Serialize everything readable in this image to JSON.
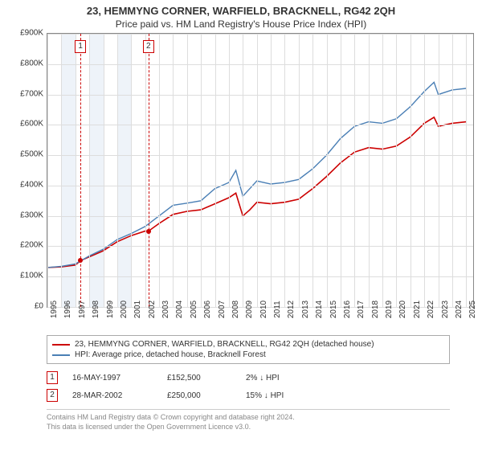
{
  "title": "23, HEMMYNG CORNER, WARFIELD, BRACKNELL, RG42 2QH",
  "subtitle": "Price paid vs. HM Land Registry's House Price Index (HPI)",
  "chart": {
    "type": "line",
    "background_color": "#ffffff",
    "grid_color": "#dddddd",
    "border_color": "#888888",
    "xlim": [
      1995,
      2025.5
    ],
    "ylim": [
      0,
      900000
    ],
    "y_ticks": [
      0,
      100000,
      200000,
      300000,
      400000,
      500000,
      600000,
      700000,
      800000,
      900000
    ],
    "y_tick_labels": [
      "£0",
      "£100K",
      "£200K",
      "£300K",
      "£400K",
      "£500K",
      "£600K",
      "£700K",
      "£800K",
      "£900K"
    ],
    "x_ticks": [
      1995,
      1996,
      1997,
      1998,
      1999,
      2000,
      2001,
      2002,
      2003,
      2004,
      2005,
      2006,
      2007,
      2008,
      2009,
      2010,
      2011,
      2012,
      2013,
      2014,
      2015,
      2016,
      2017,
      2018,
      2019,
      2020,
      2021,
      2022,
      2023,
      2024,
      2025
    ],
    "shaded_bands": [
      {
        "from": 1996,
        "to": 1997,
        "color": "#eef3f9"
      },
      {
        "from": 1998,
        "to": 1999,
        "color": "#eef3f9"
      },
      {
        "from": 2000,
        "to": 2001,
        "color": "#eef3f9"
      }
    ],
    "event_lines": [
      {
        "x": 1997.37,
        "label": "1",
        "color": "#cc0000"
      },
      {
        "x": 2002.24,
        "label": "2",
        "color": "#cc0000"
      }
    ],
    "series": [
      {
        "name": "price_paid",
        "label": "23, HEMMYNG CORNER, WARFIELD, BRACKNELL, RG42 2QH (detached house)",
        "color": "#cc0000",
        "line_width": 1.6,
        "points": [
          [
            1995,
            130000
          ],
          [
            1996,
            132000
          ],
          [
            1997,
            138000
          ],
          [
            1997.37,
            152500
          ],
          [
            1998,
            165000
          ],
          [
            1999,
            185000
          ],
          [
            2000,
            215000
          ],
          [
            2001,
            235000
          ],
          [
            2002,
            250000
          ],
          [
            2002.24,
            250000
          ],
          [
            2003,
            275000
          ],
          [
            2004,
            305000
          ],
          [
            2005,
            315000
          ],
          [
            2006,
            320000
          ],
          [
            2007,
            340000
          ],
          [
            2008,
            360000
          ],
          [
            2008.5,
            375000
          ],
          [
            2009,
            300000
          ],
          [
            2009.5,
            320000
          ],
          [
            2010,
            345000
          ],
          [
            2011,
            340000
          ],
          [
            2012,
            345000
          ],
          [
            2013,
            355000
          ],
          [
            2014,
            390000
          ],
          [
            2015,
            430000
          ],
          [
            2016,
            475000
          ],
          [
            2017,
            510000
          ],
          [
            2018,
            525000
          ],
          [
            2019,
            520000
          ],
          [
            2020,
            530000
          ],
          [
            2021,
            560000
          ],
          [
            2022,
            605000
          ],
          [
            2022.7,
            625000
          ],
          [
            2023,
            595000
          ],
          [
            2024,
            605000
          ],
          [
            2025,
            610000
          ]
        ],
        "sale_markers": [
          {
            "x": 1997.37,
            "y": 152500,
            "color": "#cc0000"
          },
          {
            "x": 2002.24,
            "y": 250000,
            "color": "#cc0000"
          }
        ]
      },
      {
        "name": "hpi",
        "label": "HPI: Average price, detached house, Bracknell Forest",
        "color": "#4a7fb5",
        "line_width": 1.4,
        "points": [
          [
            1995,
            130000
          ],
          [
            1996,
            134000
          ],
          [
            1997,
            142000
          ],
          [
            1998,
            168000
          ],
          [
            1999,
            190000
          ],
          [
            2000,
            222000
          ],
          [
            2001,
            242000
          ],
          [
            2002,
            265000
          ],
          [
            2003,
            300000
          ],
          [
            2004,
            335000
          ],
          [
            2005,
            342000
          ],
          [
            2006,
            350000
          ],
          [
            2007,
            390000
          ],
          [
            2008,
            410000
          ],
          [
            2008.5,
            450000
          ],
          [
            2009,
            365000
          ],
          [
            2009.5,
            390000
          ],
          [
            2010,
            415000
          ],
          [
            2011,
            405000
          ],
          [
            2012,
            410000
          ],
          [
            2013,
            420000
          ],
          [
            2014,
            455000
          ],
          [
            2015,
            500000
          ],
          [
            2016,
            555000
          ],
          [
            2017,
            595000
          ],
          [
            2018,
            610000
          ],
          [
            2019,
            605000
          ],
          [
            2020,
            620000
          ],
          [
            2021,
            660000
          ],
          [
            2022,
            710000
          ],
          [
            2022.7,
            740000
          ],
          [
            2023,
            700000
          ],
          [
            2024,
            715000
          ],
          [
            2025,
            720000
          ]
        ]
      }
    ]
  },
  "legend": {
    "items": [
      {
        "color": "#cc0000",
        "label": "23, HEMMYNG CORNER, WARFIELD, BRACKNELL, RG42 2QH (detached house)"
      },
      {
        "color": "#4a7fb5",
        "label": "HPI: Average price, detached house, Bracknell Forest"
      }
    ]
  },
  "transactions": [
    {
      "marker": "1",
      "date": "16-MAY-1997",
      "price": "£152,500",
      "diff": "2% ↓ HPI"
    },
    {
      "marker": "2",
      "date": "28-MAR-2002",
      "price": "£250,000",
      "diff": "15% ↓ HPI"
    }
  ],
  "footer": {
    "line1": "Contains HM Land Registry data © Crown copyright and database right 2024.",
    "line2": "This data is licensed under the Open Government Licence v3.0."
  }
}
